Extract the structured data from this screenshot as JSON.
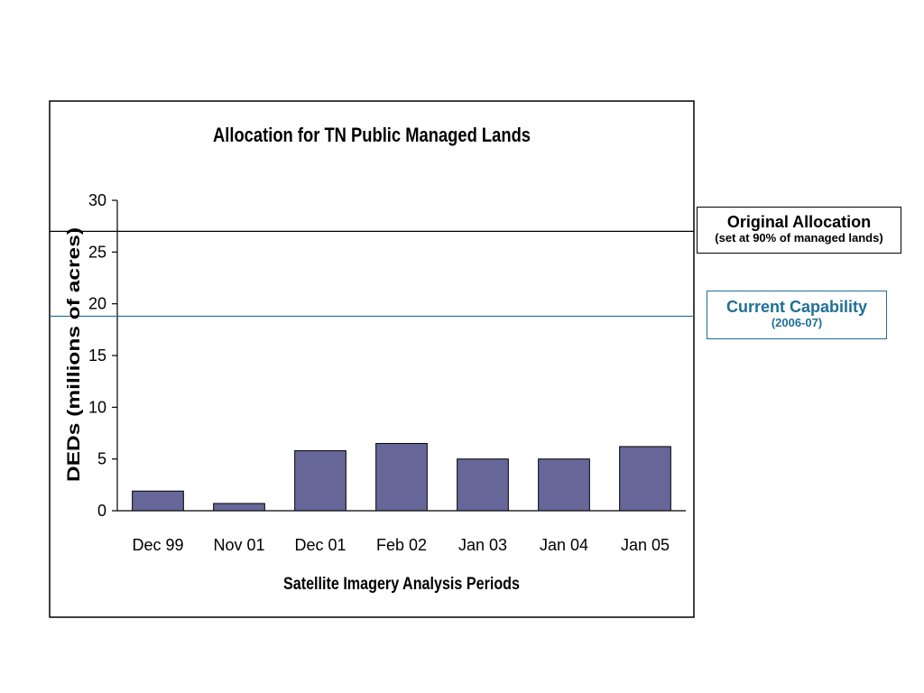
{
  "chart_data": {
    "type": "bar",
    "title": "Allocation for TN Public Managed Lands",
    "xlabel": "Satellite Imagery Analysis Periods",
    "ylabel": "DEDs (millions of acres)",
    "categories": [
      "Dec 99",
      "Nov 01",
      "Dec 01",
      "Feb 02",
      "Jan 03",
      "Jan 04",
      "Jan 05"
    ],
    "values": [
      1.9,
      0.7,
      5.8,
      6.5,
      5.0,
      5.0,
      6.2
    ],
    "ylim": [
      0,
      30
    ],
    "yticks": [
      "0",
      "5",
      "10",
      "15",
      "20",
      "25",
      "30"
    ],
    "grid": false,
    "legend": "none",
    "bar_color": "#666699",
    "reference_lines": [
      {
        "value": 27,
        "color": "#000000"
      },
      {
        "value": 18.8,
        "color": "#1f6f96"
      }
    ]
  },
  "annotations": {
    "original_allocation": {
      "title": "Original Allocation",
      "subtitle": "(set at 90% of managed lands)",
      "color": "#000000"
    },
    "current_capability": {
      "title": "Current Capability",
      "subtitle": "(2006-07)",
      "color": "#1f6f96"
    }
  }
}
